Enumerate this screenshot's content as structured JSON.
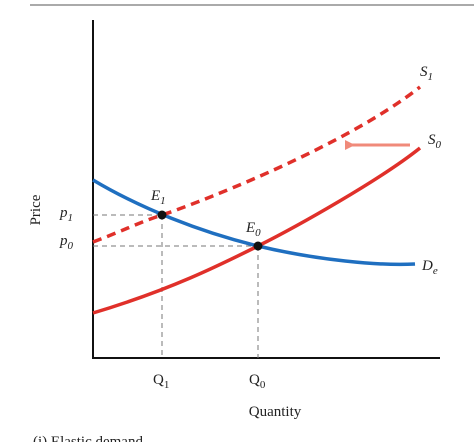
{
  "axes": {
    "y_label": "Price",
    "x_label": "Quantity"
  },
  "caption": "(i) Elastic demand",
  "curves": [
    {
      "base": "S",
      "sub": "1"
    },
    {
      "base": "S",
      "sub": "0"
    },
    {
      "base": "D",
      "sub": "e"
    }
  ],
  "points": [
    {
      "base": "E",
      "sub": "1"
    },
    {
      "base": "E",
      "sub": "0"
    }
  ],
  "prices": [
    {
      "base": "p",
      "sub": "1"
    },
    {
      "base": "p",
      "sub": "0"
    }
  ],
  "quantities": [
    {
      "base": "Q",
      "sub": "1"
    },
    {
      "base": "Q",
      "sub": "0"
    }
  ]
}
